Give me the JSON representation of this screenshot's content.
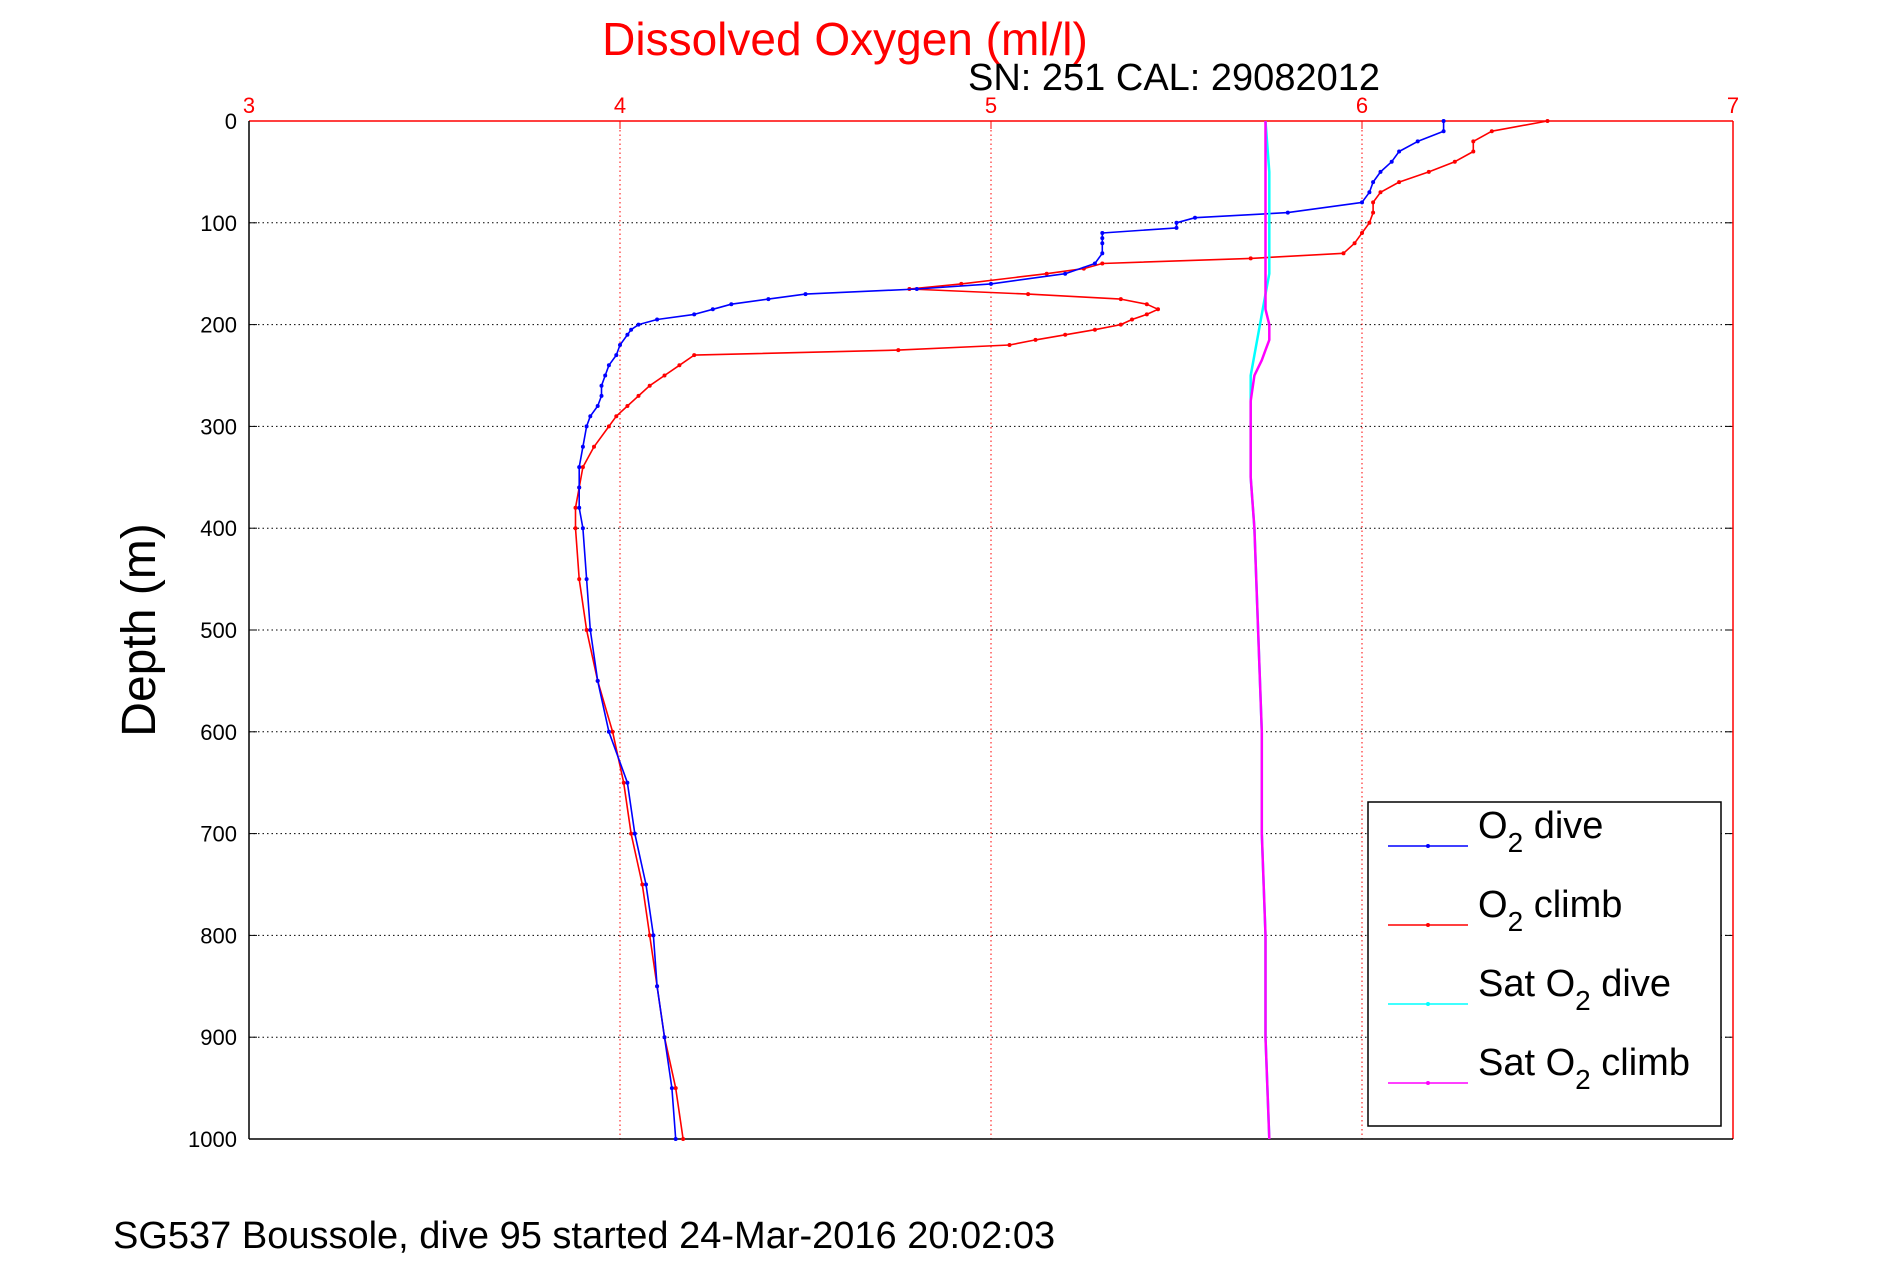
{
  "title": "Dissolved Oxygen (ml/l)",
  "subtitle": "SN: 251  CAL: 29082012",
  "footer": "SG537 Boussole, dive 95 started 24-Mar-2016 20:02:03",
  "colors": {
    "o2_dive": "#0000ff",
    "o2_climb": "#ff0000",
    "sat_dive": "#00ffff",
    "sat_climb": "#ff00ff",
    "axis_top": "#ff0000",
    "axis_left": "#000000"
  },
  "chart_data": {
    "type": "line",
    "title": "Dissolved Oxygen (ml/l)",
    "xlabel": "",
    "ylabel": "Depth (m)",
    "xlim": [
      3,
      7
    ],
    "ylim": [
      0,
      1000
    ],
    "y_reversed": true,
    "x_axis_position": "top",
    "grid": true,
    "legend_position": "bottom-right",
    "xticks": [
      3,
      4,
      5,
      6,
      7
    ],
    "yticks": [
      0,
      100,
      200,
      300,
      400,
      500,
      600,
      700,
      800,
      900,
      1000
    ],
    "legend": [
      {
        "prefix": "O",
        "sub": "2",
        "suffix": " dive"
      },
      {
        "prefix": "O",
        "sub": "2",
        "suffix": " climb"
      },
      {
        "prefix": "Sat O",
        "sub": "2",
        "suffix": " dive"
      },
      {
        "prefix": "Sat O",
        "sub": "2",
        "suffix": " climb"
      }
    ],
    "series": [
      {
        "name": "O2 dive",
        "depth": [
          0,
          10,
          20,
          30,
          40,
          50,
          60,
          70,
          80,
          90,
          95,
          100,
          105,
          110,
          115,
          120,
          130,
          140,
          150,
          160,
          165,
          170,
          175,
          180,
          185,
          190,
          195,
          200,
          205,
          210,
          220,
          230,
          240,
          250,
          260,
          270,
          280,
          290,
          300,
          320,
          340,
          360,
          380,
          400,
          450,
          500,
          550,
          600,
          650,
          700,
          750,
          800,
          850,
          900,
          950,
          1000
        ],
        "o2": [
          6.22,
          6.22,
          6.15,
          6.1,
          6.08,
          6.05,
          6.03,
          6.02,
          6.0,
          5.8,
          5.55,
          5.5,
          5.5,
          5.3,
          5.3,
          5.3,
          5.3,
          5.28,
          5.2,
          5.0,
          4.8,
          4.5,
          4.4,
          4.3,
          4.25,
          4.2,
          4.1,
          4.05,
          4.03,
          4.02,
          4.0,
          3.99,
          3.97,
          3.96,
          3.95,
          3.95,
          3.94,
          3.92,
          3.91,
          3.9,
          3.89,
          3.89,
          3.89,
          3.9,
          3.91,
          3.92,
          3.94,
          3.97,
          4.02,
          4.04,
          4.07,
          4.09,
          4.1,
          4.12,
          4.14,
          4.15
        ]
      },
      {
        "name": "O2 climb",
        "depth": [
          0,
          10,
          20,
          30,
          40,
          50,
          60,
          70,
          80,
          90,
          100,
          110,
          120,
          130,
          135,
          140,
          145,
          150,
          160,
          165,
          170,
          175,
          180,
          185,
          190,
          195,
          200,
          205,
          210,
          215,
          220,
          225,
          230,
          240,
          250,
          260,
          270,
          280,
          290,
          300,
          320,
          340,
          360,
          380,
          400,
          450,
          500,
          550,
          600,
          650,
          700,
          750,
          800,
          850,
          900,
          950,
          1000
        ],
        "o2": [
          6.5,
          6.35,
          6.3,
          6.3,
          6.25,
          6.18,
          6.1,
          6.05,
          6.03,
          6.03,
          6.02,
          6.0,
          5.98,
          5.95,
          5.7,
          5.3,
          5.25,
          5.15,
          4.92,
          4.78,
          5.1,
          5.35,
          5.42,
          5.45,
          5.42,
          5.38,
          5.35,
          5.28,
          5.2,
          5.12,
          5.05,
          4.75,
          4.2,
          4.16,
          4.12,
          4.08,
          4.05,
          4.02,
          3.99,
          3.97,
          3.93,
          3.9,
          3.89,
          3.88,
          3.88,
          3.89,
          3.91,
          3.94,
          3.98,
          4.01,
          4.03,
          4.06,
          4.08,
          4.1,
          4.12,
          4.15,
          4.17
        ]
      },
      {
        "name": "Sat O2 dive",
        "depth": [
          0,
          50,
          100,
          150,
          170,
          190,
          210,
          230,
          250,
          270,
          300,
          350,
          400,
          500,
          600,
          700,
          800,
          900,
          1000
        ],
        "o2": [
          5.74,
          5.75,
          5.75,
          5.75,
          5.74,
          5.73,
          5.72,
          5.71,
          5.7,
          5.7,
          5.7,
          5.7,
          5.71,
          5.72,
          5.73,
          5.73,
          5.74,
          5.74,
          5.75
        ]
      },
      {
        "name": "Sat O2 climb",
        "depth": [
          0,
          50,
          100,
          130,
          150,
          165,
          175,
          185,
          200,
          215,
          225,
          235,
          250,
          275,
          300,
          350,
          400,
          500,
          600,
          700,
          800,
          900,
          1000
        ],
        "o2": [
          5.74,
          5.74,
          5.74,
          5.74,
          5.74,
          5.74,
          5.74,
          5.74,
          5.75,
          5.75,
          5.74,
          5.73,
          5.71,
          5.7,
          5.7,
          5.7,
          5.71,
          5.72,
          5.73,
          5.73,
          5.74,
          5.74,
          5.75
        ]
      }
    ]
  }
}
